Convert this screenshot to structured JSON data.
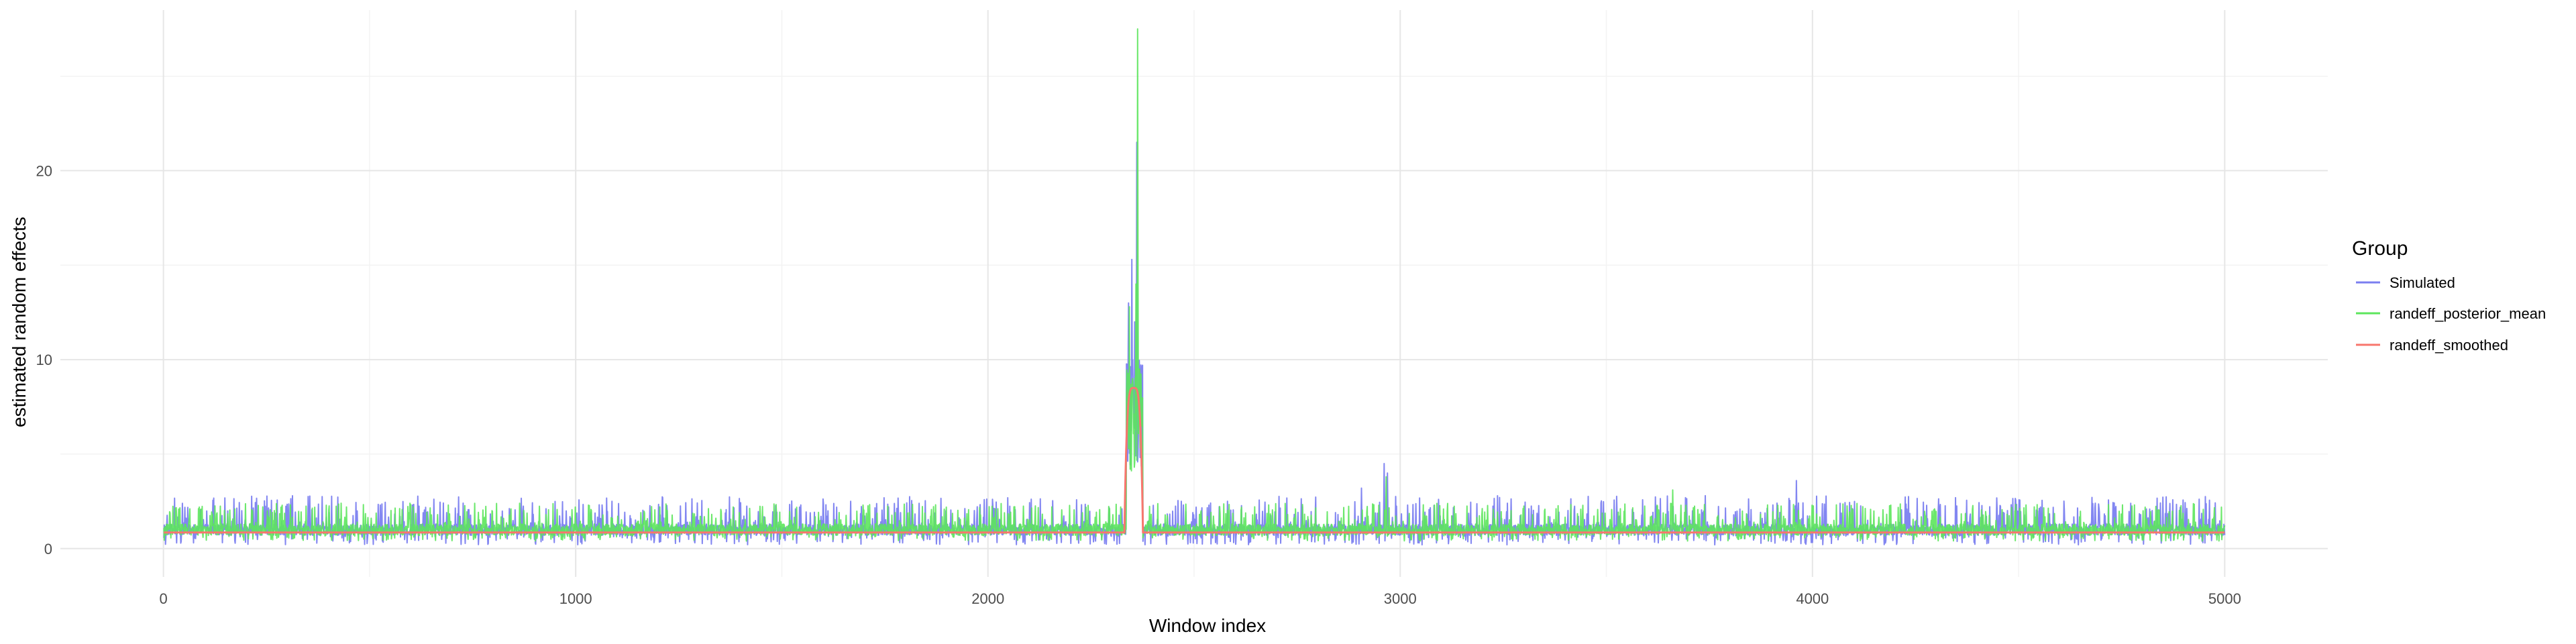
{
  "chart_data": {
    "type": "line",
    "title": "",
    "xlabel": "Window index",
    "ylabel": "estimated random effects",
    "xlim": [
      -250,
      5250
    ],
    "ylim": [
      -1.5,
      28.5
    ],
    "x_ticks": [
      0,
      1000,
      2000,
      3000,
      4000,
      5000
    ],
    "x_tick_labels": [
      "0",
      "1000",
      "2000",
      "3000",
      "4000",
      "5000"
    ],
    "y_ticks": [
      0,
      10,
      20
    ],
    "y_tick_labels": [
      "0",
      "10",
      "20"
    ],
    "grid": true,
    "legend": {
      "title": "Group",
      "position": "right",
      "entries": [
        "Simulated",
        "randeff_posterior_mean",
        "randeff_smoothed"
      ]
    },
    "n_windows": 5000,
    "baseline_level": 1.0,
    "series": [
      {
        "name": "Simulated",
        "color": "#7b7ff0",
        "noise_range": [
          0.2,
          2.8
        ],
        "peaks": [
          {
            "x": 2340,
            "y": 13.0
          },
          {
            "x": 2348,
            "y": 15.3
          },
          {
            "x": 2355,
            "y": 12.0
          },
          {
            "x": 2360,
            "y": 21.5
          },
          {
            "x": 2366,
            "y": 8.5
          },
          {
            "x": 2960,
            "y": 4.5
          },
          {
            "x": 2968,
            "y": 4.0
          },
          {
            "x": 2905,
            "y": 3.2
          },
          {
            "x": 3960,
            "y": 3.6
          }
        ]
      },
      {
        "name": "randeff_posterior_mean",
        "color": "#5ce65c",
        "noise_range": [
          0.4,
          2.4
        ],
        "peaks": [
          {
            "x": 2342,
            "y": 12.8
          },
          {
            "x": 2350,
            "y": 9.0
          },
          {
            "x": 2358,
            "y": 14.0
          },
          {
            "x": 2362,
            "y": 27.5
          },
          {
            "x": 2368,
            "y": 5.0
          },
          {
            "x": 2965,
            "y": 3.8
          },
          {
            "x": 3660,
            "y": 3.1
          }
        ]
      },
      {
        "name": "randeff_smoothed",
        "color": "#f8766d",
        "baseline": 0.85,
        "bump": {
          "start": 2330,
          "end": 2375,
          "peak": 8.5
        }
      }
    ]
  }
}
